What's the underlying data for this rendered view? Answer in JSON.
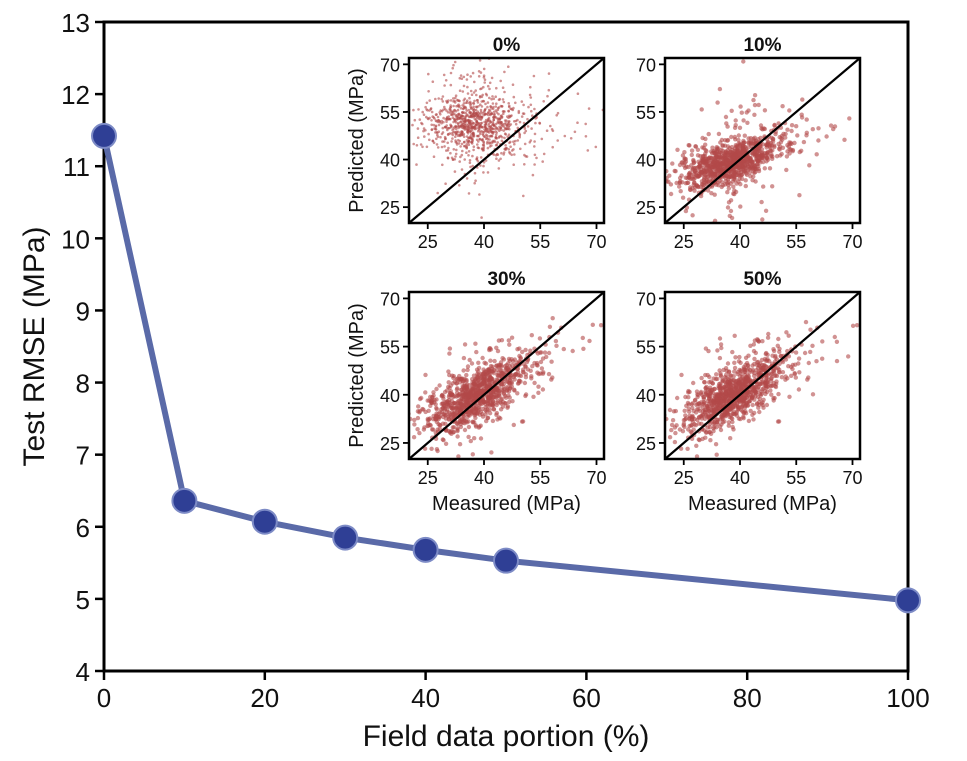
{
  "colors": {
    "main_line": "#5a6aa8",
    "main_marker": "#2f3f95",
    "inset_point": "#b24a4a",
    "axis": "#000000"
  },
  "chart_data": [
    {
      "type": "line",
      "xlabel": "Field data portion (%)",
      "ylabel": "Test RMSE (MPa)",
      "xlim": [
        0,
        100
      ],
      "ylim": [
        4,
        13
      ],
      "xticks": [
        "0",
        "20",
        "40",
        "60",
        "80",
        "100"
      ],
      "yticks": [
        "4",
        "5",
        "6",
        "7",
        "8",
        "9",
        "10",
        "11",
        "12",
        "13"
      ],
      "grid": false,
      "series": [
        {
          "x": [
            0,
            10,
            20,
            30,
            40,
            50,
            100
          ],
          "y": [
            11.42,
            6.36,
            6.07,
            5.85,
            5.68,
            5.53,
            4.98
          ]
        }
      ]
    },
    {
      "type": "scatter",
      "title": "0%",
      "xlabel": "",
      "ylabel": "Predicted (MPa)",
      "xlim": [
        20,
        72
      ],
      "ylim": [
        20,
        72
      ],
      "xticks": [
        "25",
        "40",
        "55",
        "70"
      ],
      "yticks": [
        "25",
        "40",
        "55",
        "70"
      ],
      "diagonal": true,
      "points_approx": 1000,
      "cluster": {
        "measured_center": 37,
        "predicted_center": 51
      }
    },
    {
      "type": "scatter",
      "title": "10%",
      "xlabel": "",
      "ylabel": "",
      "xlim": [
        20,
        72
      ],
      "ylim": [
        20,
        72
      ],
      "xticks": [
        "25",
        "40",
        "55",
        "70"
      ],
      "yticks": [
        "25",
        "40",
        "55",
        "70"
      ],
      "diagonal": true,
      "points_approx": 1000,
      "cluster": {
        "measured_center": 37,
        "predicted_center": 39
      }
    },
    {
      "type": "scatter",
      "title": "30%",
      "xlabel": "Measured (MPa)",
      "ylabel": "Predicted (MPa)",
      "xlim": [
        20,
        72
      ],
      "ylim": [
        20,
        72
      ],
      "xticks": [
        "25",
        "40",
        "55",
        "70"
      ],
      "yticks": [
        "25",
        "40",
        "55",
        "70"
      ],
      "diagonal": true,
      "points_approx": 1000,
      "cluster": {
        "measured_center": 38,
        "predicted_center": 40
      }
    },
    {
      "type": "scatter",
      "title": "50%",
      "xlabel": "Measured (MPa)",
      "ylabel": "",
      "xlim": [
        20,
        72
      ],
      "ylim": [
        20,
        72
      ],
      "xticks": [
        "25",
        "40",
        "55",
        "70"
      ],
      "yticks": [
        "25",
        "40",
        "55",
        "70"
      ],
      "diagonal": true,
      "points_approx": 1000,
      "cluster": {
        "measured_center": 38,
        "predicted_center": 40
      }
    }
  ]
}
